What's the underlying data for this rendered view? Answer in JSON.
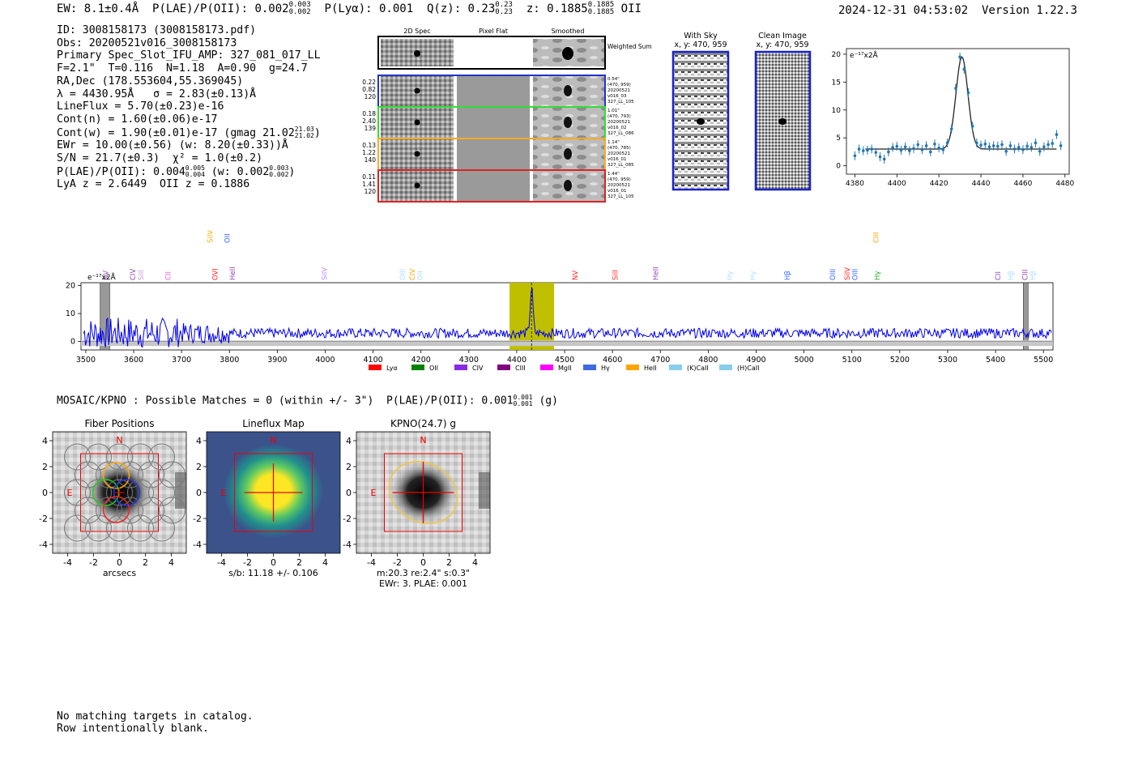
{
  "header": {
    "ew": "EW: 8.1±0.4Å",
    "plae": "P(LAE)/P(OII): 0.002",
    "plae_hi": "0.003",
    "plae_lo": "0.002",
    "plya": "P(Lyα): 0.001",
    "qz": "Q(z): 0.23",
    "qz_hi": "0.23",
    "qz_lo": "0.23",
    "z": "z: 0.1885",
    "z_hi": "0.1885",
    "z_lo": "0.1885",
    "z_line": "OII",
    "timestamp": "2024-12-31 04:53:02",
    "version": "Version 1.22.3"
  },
  "info": {
    "id": "ID: 3008158173 (3008158173.pdf)",
    "obs": "Obs: 20200521v016_3008158173",
    "primary": "Primary Spec_Slot_IFU_AMP: 327_081_017_LL",
    "params": "F=2.1\"  T=0.116  N=1.18  A=0.90  g=24.7",
    "radec": "RA,Dec (178.553604,55.369045)",
    "lambda": "λ = 4430.95Å   σ = 2.83(±0.13)Å",
    "lineflux": "LineFlux = 5.70(±0.23)e-16",
    "contn": "Cont(n) = 1.60(±0.06)e-17",
    "contw": "Cont(w) = 1.90(±0.01)e-17 (gmag 21.02",
    "contw_hi": "21.03",
    "contw_lo": "21.02",
    "contw_end": ")",
    "ewr": "EWr = 10.00(±0.56) (w: 8.20(±0.33))Å",
    "sn": "S/N = 21.7(±0.3)  χ² = 1.0(±0.2)",
    "plae2": "P(LAE)/P(OII): 0.004",
    "plae2_hi": "0.005",
    "plae2_lo": "0.004",
    "plae2_w": " (w: 0.002",
    "plae2_w_hi": "0.003",
    "plae2_w_lo": "0.002",
    "plae2_end": ")",
    "lyaz": "LyA z = 2.6449  OII z = 0.1886"
  },
  "cutouts": {
    "col_titles": [
      "2D Spec",
      "Pixel Flat",
      "Smoothed"
    ],
    "weighted_label": "Weighted Sum",
    "rows": [
      {
        "left": [
          "0.22",
          "0.82",
          "120"
        ],
        "right": [
          "0.54\"",
          "(470, 959)",
          "20200521",
          "v016_03",
          "327_LL_105"
        ],
        "color": "#2233cc"
      },
      {
        "left": [
          "0.18",
          "2.40",
          "139"
        ],
        "right": [
          "1.01\"",
          "(470, 793)",
          "20200521",
          "v016_02",
          "327_LL_086"
        ],
        "color": "#33dd33"
      },
      {
        "left": [
          "0.13",
          "1.22",
          "140"
        ],
        "right": [
          "1.14\"",
          "(470, 785)",
          "20200521",
          "v016_01",
          "327_LL_085"
        ],
        "color": "#ffaa22"
      },
      {
        "left": [
          "0.11",
          "1.41",
          "120"
        ],
        "right": [
          "1.44\"",
          "(470, 959)",
          "20200521",
          "v016_01",
          "327_LL_105"
        ],
        "color": "#dd2222"
      }
    ]
  },
  "sky": {
    "with_sky": "With Sky",
    "clean": "Clean Image",
    "coords": "x, y: 470, 959"
  },
  "zoom_chart": {
    "type": "scatter",
    "title": "e⁻¹⁷x2Å",
    "xlim": [
      4376,
      4482
    ],
    "ylim": [
      -1.5,
      21
    ],
    "xticks": [
      4380,
      4400,
      4420,
      4440,
      4460,
      4480
    ],
    "yticks": [
      0,
      5,
      10,
      15,
      20
    ],
    "x": [
      4380,
      4382,
      4384,
      4386,
      4388,
      4390,
      4392,
      4394,
      4396,
      4398,
      4400,
      4402,
      4404,
      4406,
      4408,
      4410,
      4412,
      4414,
      4416,
      4418,
      4420,
      4422,
      4424,
      4426,
      4428,
      4430,
      4432,
      4434,
      4436,
      4438,
      4440,
      4442,
      4444,
      4446,
      4448,
      4450,
      4452,
      4454,
      4456,
      4458,
      4460,
      4462,
      4464,
      4466,
      4468,
      4470,
      4472,
      4474,
      4476,
      4478
    ],
    "y": [
      1.8,
      3.0,
      2.7,
      2.8,
      3.0,
      2.4,
      1.6,
      1.2,
      2.5,
      3.3,
      3.5,
      2.8,
      3.4,
      2.7,
      3.1,
      3.8,
      2.9,
      3.6,
      2.5,
      3.9,
      3.2,
      2.9,
      4.1,
      6.6,
      13.9,
      19.5,
      17.3,
      13.1,
      7.1,
      4.1,
      3.7,
      3.9,
      3.4,
      3.6,
      3.5,
      3.8,
      2.6,
      3.6,
      3.0,
      3.3,
      2.9,
      3.5,
      3.3,
      4.1,
      2.6,
      3.4,
      3.8,
      4.0,
      5.6,
      3.6
    ],
    "fit": {
      "center": 4430.95,
      "sigma": 2.83,
      "peak": 16.5,
      "continuum": 3.0
    }
  },
  "full_spectrum": {
    "type": "line",
    "ylabel": "e⁻¹⁷x2Å",
    "xlim": [
      3490,
      5520
    ],
    "ylim": [
      -3,
      21
    ],
    "xticks": [
      3500,
      3600,
      3700,
      3800,
      3900,
      4000,
      4100,
      4200,
      4300,
      4400,
      4500,
      4600,
      4700,
      4800,
      4900,
      5000,
      5100,
      5200,
      5300,
      5400,
      5500
    ],
    "yticks": [
      0,
      10,
      20
    ],
    "highlight_range": [
      4385,
      4478
    ],
    "emission_at": 4431,
    "masked": [
      [
        3530,
        3550
      ],
      [
        5458,
        5468
      ]
    ],
    "lines": [
      {
        "name": "NV",
        "x": 3542,
        "color": "#9b59b6",
        "row": 0
      },
      {
        "name": "CIV",
        "x": 3598,
        "color": "#8e44ad",
        "row": 1
      },
      {
        "name": "SiII",
        "x": 3615,
        "color": "#c39bd3",
        "row": 0
      },
      {
        "name": "CII",
        "x": 3672,
        "color": "#ee55ee",
        "row": 0
      },
      {
        "name": "SiIV",
        "x": 3760,
        "color": "#ffa500",
        "row": 2
      },
      {
        "name": "OVI",
        "x": 3770,
        "color": "#ff2222",
        "row": 1
      },
      {
        "name": "OII",
        "x": 3795,
        "color": "#3366ff",
        "row": 2
      },
      {
        "name": "HeII",
        "x": 3806,
        "color": "#8e44ad",
        "row": 1
      },
      {
        "name": "SiIV",
        "x": 3998,
        "color": "#b388ff",
        "row": 0
      },
      {
        "name": "OIII",
        "x": 4162,
        "color": "#aaddff",
        "row": 0
      },
      {
        "name": "CIV",
        "x": 4182,
        "color": "#ffa500",
        "row": 0
      },
      {
        "name": "OII",
        "x": 4198,
        "color": "#aaddff",
        "row": 0
      },
      {
        "name": "NV",
        "x": 4522,
        "color": "#ff2222",
        "row": 0
      },
      {
        "name": "SiII",
        "x": 4606,
        "color": "#ff2222",
        "row": 0
      },
      {
        "name": "HeII",
        "x": 4690,
        "color": "#8e44ad",
        "row": 0
      },
      {
        "name": "Hγ",
        "x": 4845,
        "color": "#aaddff",
        "row": 0
      },
      {
        "name": "Hγ",
        "x": 4893,
        "color": "#aaddff",
        "row": 0
      },
      {
        "name": "Hβ",
        "x": 4965,
        "color": "#3366ff",
        "row": 0
      },
      {
        "name": "OIII",
        "x": 5060,
        "color": "#3366ff",
        "row": 0
      },
      {
        "name": "SiIV",
        "x": 5090,
        "color": "#ff2222",
        "row": 0
      },
      {
        "name": "OIII",
        "x": 5106,
        "color": "#3366ff",
        "row": 0
      },
      {
        "name": "Hγ",
        "x": 5153,
        "color": "#22aa22",
        "row": 0
      },
      {
        "name": "CIII",
        "x": 5150,
        "color": "#ffa500",
        "row": 3
      },
      {
        "name": "CII",
        "x": 5405,
        "color": "#8e44ad",
        "row": 0
      },
      {
        "name": "Hβ",
        "x": 5432,
        "color": "#aaddff",
        "row": 0
      },
      {
        "name": "CIII",
        "x": 5462,
        "color": "#8e44ad",
        "row": 0
      },
      {
        "name": "Hβ",
        "x": 5478,
        "color": "#aaddff",
        "row": 0
      }
    ],
    "legend": [
      {
        "label": "Lyα",
        "color": "#ff0000"
      },
      {
        "label": "OII",
        "color": "#008000"
      },
      {
        "label": "CIV",
        "color": "#8a2be2"
      },
      {
        "label": "CIII",
        "color": "#800080"
      },
      {
        "label": "MgII",
        "color": "#ff00ff"
      },
      {
        "label": "Hγ",
        "color": "#4169e1"
      },
      {
        "label": "HeII",
        "color": "#ffa500"
      },
      {
        "label": "(K)CaII",
        "color": "#87ceeb"
      },
      {
        "label": "(H)CaII",
        "color": "#87ceeb"
      }
    ]
  },
  "mosaic": {
    "line": "MOSAIC/KPNO : Possible Matches = 0 (within +/- 3\")  P(LAE)/P(OII): 0.001",
    "hi": "0.001",
    "lo": "0.001",
    "end": " (g)"
  },
  "panels": [
    {
      "title": "Fiber Positions",
      "xlabel": "arcsecs",
      "extra": ""
    },
    {
      "title": "Lineflux Map",
      "xlabel": "s/b: 11.18 +/- 0.106",
      "extra": ""
    },
    {
      "title": "KPNO(24.7) g",
      "xlabel": "m:20.3  re:2.4\"  s:0.3\"",
      "extra": "EWr: 3. PLAE: 0.001"
    }
  ],
  "panel_ticks": [
    "-4",
    "-2",
    "0",
    "2",
    "4"
  ],
  "panel_marks": {
    "north": "N",
    "east": "E"
  },
  "catalog": {
    "line1": "No matching targets in catalog.",
    "line2": "Row intentionally blank."
  }
}
